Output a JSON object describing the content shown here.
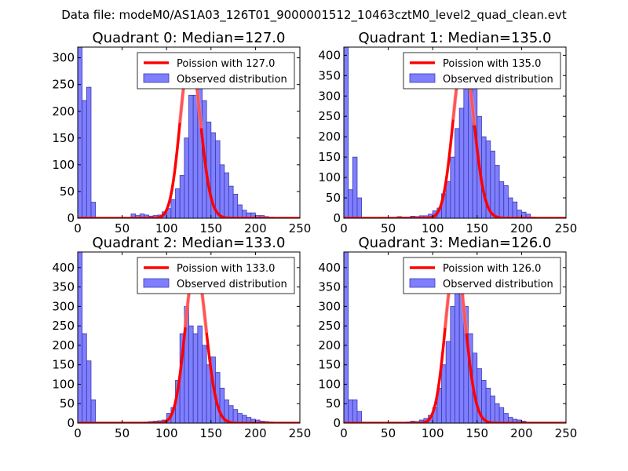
{
  "figure_title": "Data file: modeM0/AS1A03_126T01_9000001512_10463cztM0_level2_quad_clean.evt",
  "colors": {
    "bar_fill": "#7f7fff",
    "bar_edge": "#3a3ab0",
    "curve": "#ff0000",
    "curve_peak": "#ff9a9a"
  },
  "chart_data": [
    {
      "type": "bar",
      "title": "Quadrant 0: Median=127.0",
      "legend": {
        "placement": "top-right",
        "entries": [
          "Poission with 127.0",
          "Observed distribution"
        ]
      },
      "xlim": [
        0,
        250
      ],
      "ylim": [
        0,
        320
      ],
      "xticks": [
        0,
        50,
        100,
        150,
        200,
        250
      ],
      "xtick_labels": [
        "0",
        "50",
        "100",
        "150",
        "200",
        "250"
      ],
      "yticks": [
        0,
        50,
        100,
        150,
        200,
        250,
        300
      ],
      "ytick_labels": [
        "0",
        "50",
        "100",
        "150",
        "200",
        "250",
        "300"
      ],
      "median": 127,
      "poisson_scale": 305,
      "bin_width": 5,
      "bins": [
        [
          0,
          320
        ],
        [
          5,
          220
        ],
        [
          10,
          245
        ],
        [
          15,
          30
        ],
        [
          60,
          8
        ],
        [
          65,
          5
        ],
        [
          70,
          8
        ],
        [
          75,
          6
        ],
        [
          80,
          4
        ],
        [
          85,
          5
        ],
        [
          90,
          6
        ],
        [
          95,
          12
        ],
        [
          100,
          18
        ],
        [
          105,
          35
        ],
        [
          110,
          55
        ],
        [
          115,
          80
        ],
        [
          120,
          150
        ],
        [
          125,
          230
        ],
        [
          130,
          230
        ],
        [
          135,
          245
        ],
        [
          140,
          220
        ],
        [
          145,
          180
        ],
        [
          150,
          160
        ],
        [
          155,
          145
        ],
        [
          160,
          100
        ],
        [
          165,
          85
        ],
        [
          170,
          60
        ],
        [
          175,
          45
        ],
        [
          180,
          25
        ],
        [
          185,
          15
        ],
        [
          190,
          10
        ],
        [
          195,
          10
        ],
        [
          200,
          5
        ],
        [
          205,
          5
        ],
        [
          210,
          3
        ],
        [
          215,
          2
        ]
      ]
    },
    {
      "type": "bar",
      "title": "Quadrant 1: Median=135.0",
      "legend": {
        "placement": "top-right",
        "entries": [
          "Poission with 135.0",
          "Observed distribution"
        ]
      },
      "xlim": [
        0,
        250
      ],
      "ylim": [
        0,
        420
      ],
      "xticks": [
        0,
        50,
        100,
        150,
        200,
        250
      ],
      "xtick_labels": [
        "0",
        "50",
        "100",
        "150",
        "200",
        "250"
      ],
      "yticks": [
        0,
        50,
        100,
        150,
        200,
        250,
        300,
        350,
        400
      ],
      "ytick_labels": [
        "0",
        "50",
        "100",
        "150",
        "200",
        "250",
        "300",
        "350",
        "400"
      ],
      "median": 135,
      "poisson_scale": 400,
      "bin_width": 5,
      "bins": [
        [
          0,
          420
        ],
        [
          5,
          70
        ],
        [
          10,
          150
        ],
        [
          15,
          50
        ],
        [
          60,
          4
        ],
        [
          65,
          3
        ],
        [
          70,
          3
        ],
        [
          75,
          5
        ],
        [
          80,
          4
        ],
        [
          85,
          6
        ],
        [
          90,
          6
        ],
        [
          95,
          10
        ],
        [
          100,
          18
        ],
        [
          105,
          25
        ],
        [
          110,
          60
        ],
        [
          115,
          90
        ],
        [
          120,
          150
        ],
        [
          125,
          220
        ],
        [
          130,
          270
        ],
        [
          135,
          330
        ],
        [
          140,
          380
        ],
        [
          145,
          350
        ],
        [
          150,
          250
        ],
        [
          155,
          200
        ],
        [
          160,
          190
        ],
        [
          165,
          165
        ],
        [
          170,
          130
        ],
        [
          175,
          90
        ],
        [
          180,
          80
        ],
        [
          185,
          50
        ],
        [
          190,
          40
        ],
        [
          195,
          20
        ],
        [
          200,
          15
        ],
        [
          205,
          10
        ],
        [
          210,
          3
        ]
      ]
    },
    {
      "type": "bar",
      "title": "Quadrant 2: Median=133.0",
      "legend": {
        "placement": "top-right",
        "entries": [
          "Poission with 133.0",
          "Observed distribution"
        ]
      },
      "xlim": [
        0,
        250
      ],
      "ylim": [
        0,
        440
      ],
      "xticks": [
        0,
        50,
        100,
        150,
        200,
        250
      ],
      "xtick_labels": [
        "0",
        "50",
        "100",
        "150",
        "200",
        "250"
      ],
      "yticks": [
        0,
        50,
        100,
        150,
        200,
        250,
        300,
        350,
        400
      ],
      "ytick_labels": [
        "0",
        "50",
        "100",
        "150",
        "200",
        "250",
        "300",
        "350",
        "400"
      ],
      "median": 133,
      "poisson_scale": 410,
      "bin_width": 5,
      "bins": [
        [
          0,
          440
        ],
        [
          5,
          230
        ],
        [
          10,
          160
        ],
        [
          15,
          60
        ],
        [
          75,
          3
        ],
        [
          80,
          4
        ],
        [
          85,
          5
        ],
        [
          90,
          6
        ],
        [
          95,
          8
        ],
        [
          100,
          25
        ],
        [
          105,
          40
        ],
        [
          110,
          110
        ],
        [
          115,
          230
        ],
        [
          120,
          300
        ],
        [
          125,
          250
        ],
        [
          130,
          230
        ],
        [
          135,
          250
        ],
        [
          140,
          200
        ],
        [
          145,
          150
        ],
        [
          150,
          170
        ],
        [
          155,
          130
        ],
        [
          160,
          90
        ],
        [
          165,
          60
        ],
        [
          170,
          45
        ],
        [
          175,
          35
        ],
        [
          180,
          25
        ],
        [
          185,
          20
        ],
        [
          190,
          15
        ],
        [
          195,
          10
        ],
        [
          200,
          8
        ],
        [
          205,
          5
        ],
        [
          210,
          4
        ],
        [
          215,
          3
        ],
        [
          220,
          2
        ]
      ]
    },
    {
      "type": "bar",
      "title": "Quadrant 3: Median=126.0",
      "legend": {
        "placement": "top-right",
        "entries": [
          "Poission with 126.0",
          "Observed distribution"
        ]
      },
      "xlim": [
        0,
        250
      ],
      "ylim": [
        0,
        440
      ],
      "xticks": [
        0,
        50,
        100,
        150,
        200,
        250
      ],
      "xtick_labels": [
        "0",
        "50",
        "100",
        "150",
        "200",
        "250"
      ],
      "yticks": [
        0,
        50,
        100,
        150,
        200,
        250,
        300,
        350,
        400
      ],
      "ytick_labels": [
        "0",
        "50",
        "100",
        "150",
        "200",
        "250",
        "300",
        "350",
        "400"
      ],
      "median": 126,
      "poisson_scale": 420,
      "bin_width": 5,
      "bins": [
        [
          0,
          440
        ],
        [
          5,
          60
        ],
        [
          10,
          60
        ],
        [
          15,
          30
        ],
        [
          70,
          3
        ],
        [
          75,
          5
        ],
        [
          80,
          4
        ],
        [
          85,
          8
        ],
        [
          90,
          12
        ],
        [
          95,
          20
        ],
        [
          100,
          40
        ],
        [
          105,
          90
        ],
        [
          110,
          150
        ],
        [
          115,
          210
        ],
        [
          120,
          300
        ],
        [
          125,
          380
        ],
        [
          130,
          370
        ],
        [
          135,
          300
        ],
        [
          140,
          230
        ],
        [
          145,
          180
        ],
        [
          150,
          140
        ],
        [
          155,
          110
        ],
        [
          160,
          90
        ],
        [
          165,
          70
        ],
        [
          170,
          50
        ],
        [
          175,
          40
        ],
        [
          180,
          25
        ],
        [
          185,
          15
        ],
        [
          190,
          10
        ],
        [
          195,
          8
        ],
        [
          200,
          5
        ]
      ]
    }
  ]
}
